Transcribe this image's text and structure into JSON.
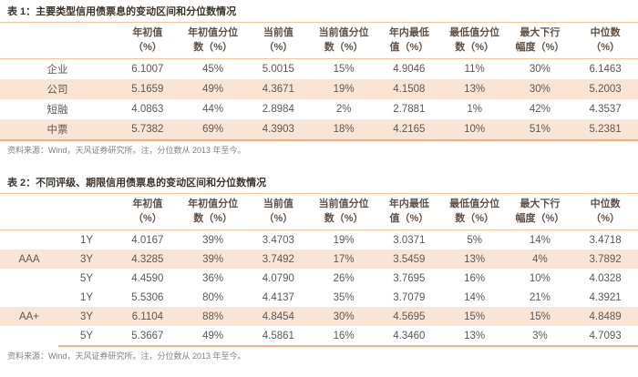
{
  "colors": {
    "accent_line_thin": "#f2c79e",
    "accent_line_thick": "#efb07f",
    "row_stripe": "#fae4d3",
    "title_text": "#3c342c",
    "header_text": "#5f5146",
    "data_text": "#595959",
    "source_text": "#808080"
  },
  "table1": {
    "title": "表 1：主要类型信用债票息的变动区间和分位数情况",
    "headers": [
      {
        "top": "年初值",
        "bottom": "（%）"
      },
      {
        "top": "年初值分位",
        "bottom": "数（%）"
      },
      {
        "top": "当前值",
        "bottom": "（%）"
      },
      {
        "top": "当前值分位",
        "bottom": "数（%）"
      },
      {
        "top": "年内最低",
        "bottom": "值（%）"
      },
      {
        "top": "最低值分位",
        "bottom": "数（%）"
      },
      {
        "top": "最大下行",
        "bottom": "幅度（%）"
      },
      {
        "top": "中位数",
        "bottom": "（%）"
      }
    ],
    "rows": [
      {
        "label": "企业",
        "values": [
          "6.1007",
          "45%",
          "5.0015",
          "15%",
          "4.9046",
          "11%",
          "30%",
          "6.1463"
        ]
      },
      {
        "label": "公司",
        "values": [
          "5.1659",
          "49%",
          "4.3671",
          "19%",
          "4.1508",
          "13%",
          "30%",
          "5.2003"
        ]
      },
      {
        "label": "短融",
        "values": [
          "4.0863",
          "44%",
          "2.8984",
          "2%",
          "2.7881",
          "1%",
          "42%",
          "4.3537"
        ]
      },
      {
        "label": "中票",
        "values": [
          "5.7382",
          "69%",
          "4.3903",
          "18%",
          "4.2165",
          "10%",
          "51%",
          "5.2381"
        ]
      }
    ],
    "source": "资料来源：Wind，天风证券研究所。注，分位数从 2013 年至今。"
  },
  "table2": {
    "title": "表 2：不同评级、期限信用债票息的变动区间和分位数情况",
    "headers": [
      {
        "top": "年初值",
        "bottom": "（%）"
      },
      {
        "top": "年初值分位",
        "bottom": "数（%）"
      },
      {
        "top": "当前值",
        "bottom": "（%）"
      },
      {
        "top": "当前值分位",
        "bottom": "数（%）"
      },
      {
        "top": "年内最低",
        "bottom": "值（%）"
      },
      {
        "top": "最低值分位",
        "bottom": "数（%）"
      },
      {
        "top": "最大下行",
        "bottom": "幅度（%）"
      },
      {
        "top": "中位数",
        "bottom": "（%）"
      }
    ],
    "groups": [
      {
        "rating": "AAA",
        "rows": [
          {
            "tenor": "1Y",
            "values": [
              "4.0167",
              "39%",
              "3.4703",
              "19%",
              "3.0371",
              "5%",
              "14%",
              "3.4718"
            ]
          },
          {
            "tenor": "3Y",
            "values": [
              "4.3285",
              "39%",
              "3.7492",
              "17%",
              "3.5459",
              "13%",
              "4%",
              "3.7892"
            ]
          },
          {
            "tenor": "5Y",
            "values": [
              "4.4590",
              "36%",
              "4.0790",
              "26%",
              "3.7695",
              "16%",
              "10%",
              "4.0328"
            ]
          }
        ]
      },
      {
        "rating": "AA+",
        "rows": [
          {
            "tenor": "1Y",
            "values": [
              "5.5306",
              "80%",
              "4.4137",
              "35%",
              "3.7079",
              "14%",
              "21%",
              "4.3921"
            ]
          },
          {
            "tenor": "3Y",
            "values": [
              "6.1104",
              "88%",
              "4.8454",
              "30%",
              "4.5695",
              "15%",
              "15%",
              "4.8489"
            ]
          },
          {
            "tenor": "5Y",
            "values": [
              "5.3667",
              "49%",
              "4.5861",
              "16%",
              "4.3460",
              "13%",
              "3%",
              "4.7093"
            ]
          }
        ]
      }
    ],
    "source": "资料来源：Wind，天风证券研究所。注，分位数从 2013 年至今。"
  }
}
